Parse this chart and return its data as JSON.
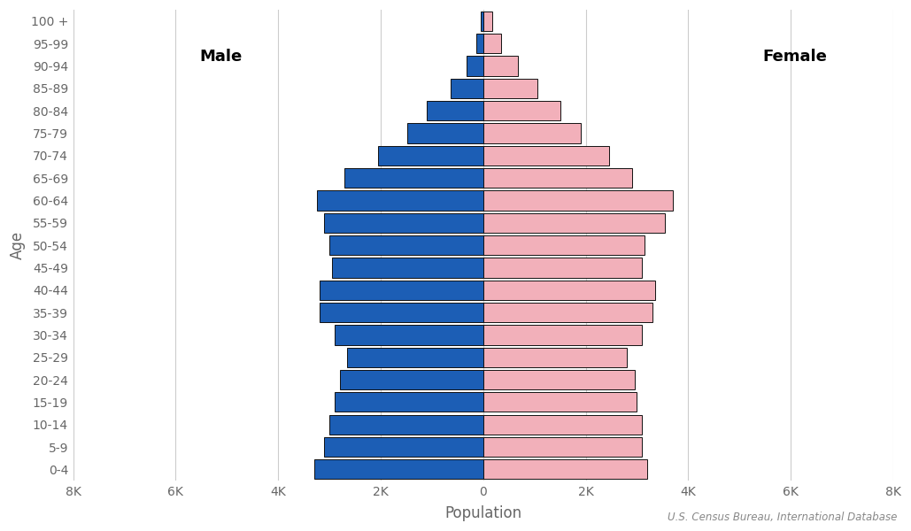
{
  "age_groups": [
    "0-4",
    "5-9",
    "10-14",
    "15-19",
    "20-24",
    "25-29",
    "30-34",
    "35-39",
    "40-44",
    "45-49",
    "50-54",
    "55-59",
    "60-64",
    "65-69",
    "70-74",
    "75-79",
    "80-84",
    "85-89",
    "90-94",
    "95-99",
    "100 +"
  ],
  "male": [
    3300,
    3100,
    3000,
    2900,
    2800,
    2650,
    2900,
    3200,
    3200,
    2950,
    3000,
    3100,
    3250,
    2700,
    2050,
    1480,
    1100,
    630,
    320,
    130,
    50
  ],
  "female": [
    3200,
    3100,
    3100,
    3000,
    2950,
    2800,
    3100,
    3300,
    3350,
    3100,
    3150,
    3550,
    3700,
    2900,
    2450,
    1900,
    1500,
    1050,
    680,
    350,
    180
  ],
  "male_color": "#1c5eb5",
  "female_color": "#f2b0ba",
  "edge_color": "#111111",
  "background_color": "#ffffff",
  "xlabel": "Population",
  "ylabel": "Age",
  "male_label": "Male",
  "female_label": "Female",
  "source_text": "U.S. Census Bureau, International Database",
  "xlim": 8000,
  "tick_labels": [
    "8K",
    "6K",
    "4K",
    "2K",
    "0",
    "2K",
    "4K",
    "6K",
    "8K"
  ],
  "grid_color": "#cccccc",
  "label_fontsize": 12,
  "tick_fontsize": 10,
  "source_fontsize": 8.5,
  "annotation_fontsize": 13
}
